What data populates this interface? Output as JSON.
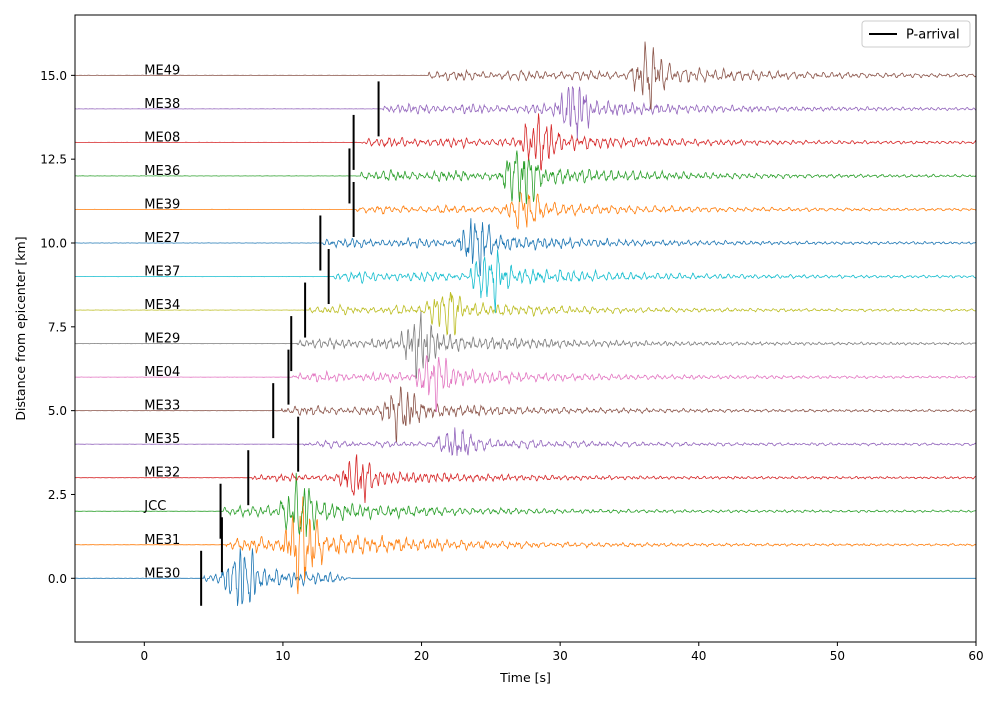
{
  "chart_data": {
    "type": "line",
    "xlabel": "Time [s]",
    "ylabel": "Distance from epicenter [km]",
    "xlim": [
      -5,
      60
    ],
    "ylim": [
      -1.9,
      16.8
    ],
    "xticks": [
      0,
      10,
      20,
      30,
      40,
      50,
      60
    ],
    "yticks": [
      0.0,
      2.5,
      5.0,
      7.5,
      10.0,
      12.5,
      15.0
    ],
    "ytick_labels": [
      "0.0",
      "2.5",
      "5.0",
      "7.5",
      "10.0",
      "12.5",
      "15.0"
    ],
    "grid": false,
    "legend": {
      "position": "top-right",
      "entries": [
        {
          "label": "P-arrival",
          "color": "#000000"
        }
      ]
    },
    "label_x": 0,
    "traces": [
      {
        "name": "ME30",
        "offset": 0,
        "color": "#1f77b4",
        "p_arrival": 4.1,
        "onset": 4.3,
        "peak_time": 7.1,
        "peak_amp": 1.1,
        "end": 15.0
      },
      {
        "name": "ME31",
        "offset": 1,
        "color": "#ff7f0e",
        "p_arrival": 5.6,
        "onset": 5.9,
        "peak_time": 11.5,
        "peak_amp": 1.4,
        "end": 60
      },
      {
        "name": "JCC",
        "offset": 2,
        "color": "#2ca02c",
        "p_arrival": 5.5,
        "onset": 5.7,
        "peak_time": 11.2,
        "peak_amp": 1.1,
        "end": 60
      },
      {
        "name": "ME32",
        "offset": 3,
        "color": "#d62728",
        "p_arrival": 7.5,
        "onset": 7.8,
        "peak_time": 15.5,
        "peak_amp": 0.75,
        "end": 60
      },
      {
        "name": "ME35",
        "offset": 4,
        "color": "#9467bd",
        "p_arrival": 11.1,
        "onset": 11.4,
        "peak_time": 22.5,
        "peak_amp": 0.6,
        "end": 60
      },
      {
        "name": "ME33",
        "offset": 5,
        "color": "#8c564b",
        "p_arrival": 9.3,
        "onset": 9.9,
        "peak_time": 18.5,
        "peak_amp": 0.85,
        "end": 60
      },
      {
        "name": "ME04",
        "offset": 6,
        "color": "#e377c2",
        "p_arrival": 10.4,
        "onset": 10.7,
        "peak_time": 21.0,
        "peak_amp": 0.9,
        "end": 60
      },
      {
        "name": "ME29",
        "offset": 7,
        "color": "#7f7f7f",
        "p_arrival": 10.6,
        "onset": 10.9,
        "peak_time": 20.0,
        "peak_amp": 1.0,
        "end": 60
      },
      {
        "name": "ME34",
        "offset": 8,
        "color": "#bcbd22",
        "p_arrival": 11.6,
        "onset": 11.9,
        "peak_time": 21.8,
        "peak_amp": 0.8,
        "end": 60
      },
      {
        "name": "ME37",
        "offset": 9,
        "color": "#17becf",
        "p_arrival": 13.3,
        "onset": 13.6,
        "peak_time": 25.0,
        "peak_amp": 1.0,
        "end": 60
      },
      {
        "name": "ME27",
        "offset": 10,
        "color": "#1f77b4",
        "p_arrival": 12.7,
        "onset": 12.9,
        "peak_time": 24.0,
        "peak_amp": 0.9,
        "end": 60
      },
      {
        "name": "ME39",
        "offset": 11,
        "color": "#ff7f0e",
        "p_arrival": 15.1,
        "onset": 15.3,
        "peak_time": 27.5,
        "peak_amp": 0.75,
        "end": 60
      },
      {
        "name": "ME36",
        "offset": 12,
        "color": "#2ca02c",
        "p_arrival": 14.8,
        "onset": 15.6,
        "peak_time": 27.2,
        "peak_amp": 1.0,
        "end": 60
      },
      {
        "name": "ME08",
        "offset": 13,
        "color": "#d62728",
        "p_arrival": 15.1,
        "onset": 15.6,
        "peak_time": 28.5,
        "peak_amp": 0.9,
        "end": 60
      },
      {
        "name": "ME38",
        "offset": 14,
        "color": "#9467bd",
        "p_arrival": 16.9,
        "onset": 17.2,
        "peak_time": 31.0,
        "peak_amp": 0.9,
        "end": 60
      },
      {
        "name": "ME49",
        "offset": 15,
        "color": "#8c564b",
        "p_arrival": null,
        "onset": 20.5,
        "peak_time": 36.5,
        "peak_amp": 0.95,
        "end": 60
      }
    ]
  }
}
